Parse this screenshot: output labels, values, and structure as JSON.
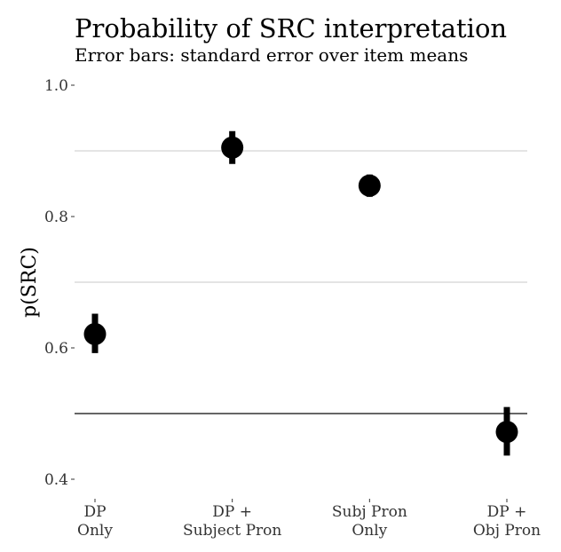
{
  "chart_data": {
    "type": "scatter",
    "title": "Probability of SRC interpretation",
    "subtitle": "Error bars: standard error over item means",
    "ylabel": "p(SRC)",
    "xlabel": "",
    "ylim": [
      0.38,
      1.01
    ],
    "yticks": [
      {
        "value": 0.4,
        "label": "0.4"
      },
      {
        "value": 0.6,
        "label": "0.6"
      },
      {
        "value": 0.8,
        "label": "0.8"
      },
      {
        "value": 1.0,
        "label": "1.0"
      }
    ],
    "minor_gridlines": [
      0.5,
      0.7,
      0.9
    ],
    "reference_line": 0.5,
    "categories": [
      {
        "line1": "DP",
        "line2": "Only"
      },
      {
        "line1": "DP +",
        "line2": "Subject Pron"
      },
      {
        "line1": "Subj Pron",
        "line2": "Only"
      },
      {
        "line1": "DP +",
        "line2": "Obj Pron"
      }
    ],
    "points": [
      {
        "mean": 0.621,
        "lower": 0.592,
        "upper": 0.652
      },
      {
        "mean": 0.905,
        "lower": 0.88,
        "upper": 0.93
      },
      {
        "mean": 0.847,
        "lower": 0.83,
        "upper": 0.864
      },
      {
        "mean": 0.472,
        "lower": 0.436,
        "upper": 0.51
      }
    ],
    "grid": true,
    "legend": "none",
    "colors": {
      "points": "#000000",
      "grid": "#c8c8c8",
      "reference": "#333333",
      "text": "#333333"
    }
  }
}
